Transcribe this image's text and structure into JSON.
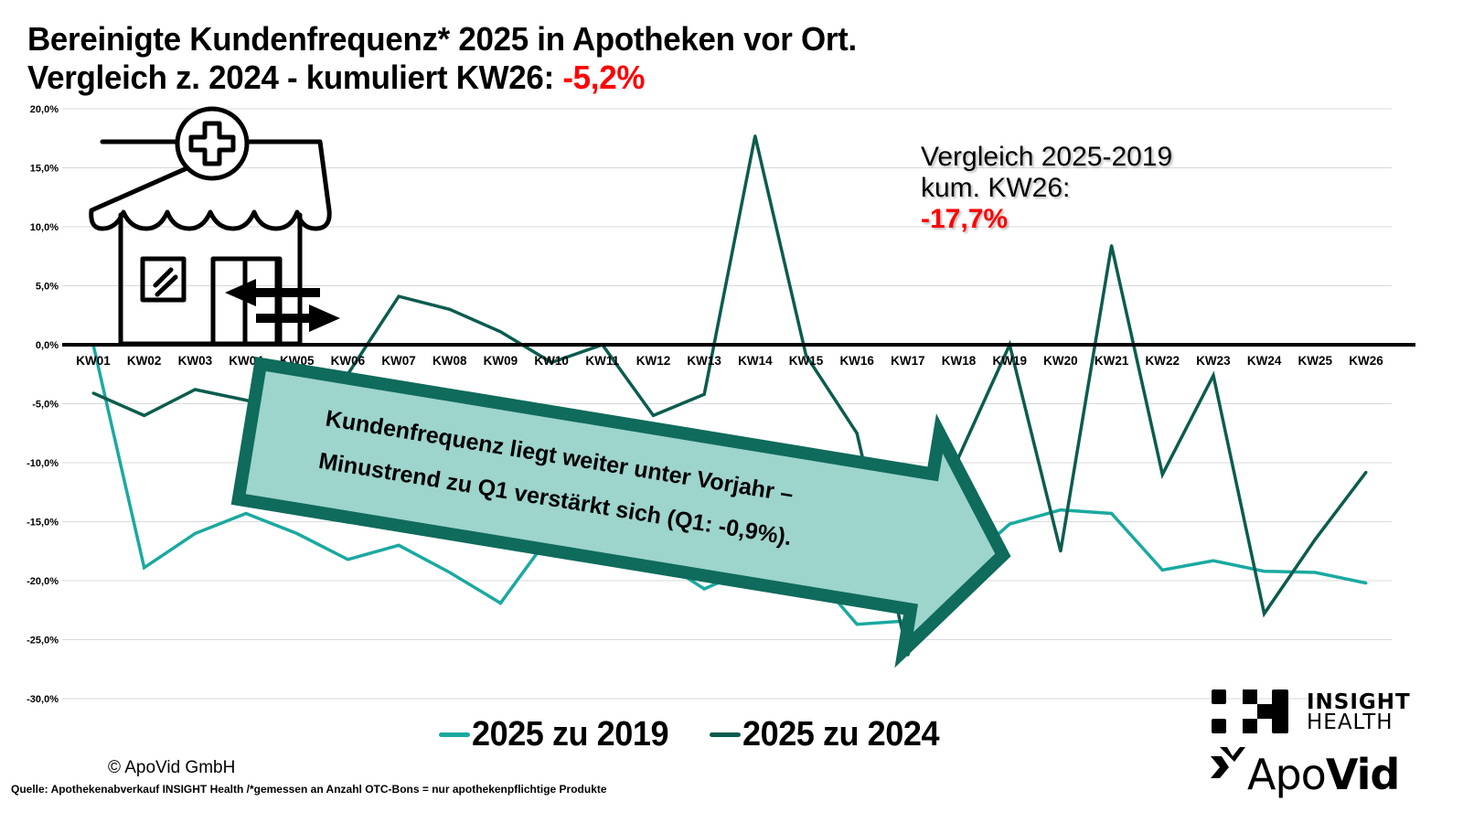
{
  "header": {
    "title_line1": "Bereinigte Kundenfrequenz* 2025 in Apotheken vor Ort.",
    "title_line2_prefix": "Vergleich z. 2024 - kumuliert KW26: ",
    "title_line2_value": "-5,2%"
  },
  "annotation": {
    "line1": "Vergleich 2025-2019",
    "line2": "kum. KW26:",
    "value": "-17,7%"
  },
  "callout": {
    "line1": "Kundenfrequenz liegt weiter unter Vorjahr –",
    "line2": "Minustrend zu Q1 verstärkt sich (Q1: -0,9%)."
  },
  "icons": {
    "pharmacy": "pharmacy-store-icon",
    "arrows": "in-out-arrows-icon"
  },
  "colors": {
    "series_2019": "#1aa9a0",
    "series_2024": "#0b5c4e",
    "callout_fill": "#9dd4cc",
    "callout_border": "#0f6b5c",
    "highlight_red": "#ff0000",
    "gridline": "#d9d9d9"
  },
  "footer": {
    "copyright": "© ApoVid GmbH",
    "source": "Quelle: Apothekenabverkauf INSIGHT Health /*gemessen an Anzahl OTC-Bons = nur apothekenpflichtige Produkte"
  },
  "logos": {
    "insight_line1": "INSIGHT",
    "insight_line2": "HEALTH",
    "apovid_regular": "Apo",
    "apovid_bold": "Vid"
  },
  "chart_data": {
    "type": "line",
    "title": "Bereinigte Kundenfrequenz* 2025 in Apotheken vor Ort. Vergleich z. 2024 - kumuliert KW26: -5,2%",
    "xlabel": "",
    "ylabel": "",
    "ylim": [
      -30,
      20
    ],
    "yticks": [
      20,
      15,
      10,
      5,
      0,
      -5,
      -10,
      -15,
      -20,
      -25,
      -30
    ],
    "ytick_labels": [
      "20,0%",
      "15,0%",
      "10,0%",
      "5,0%",
      "0,0%",
      "-5,0%",
      "-10,0%",
      "-15,0%",
      "-20,0%",
      "-25,0%",
      "-30,0%"
    ],
    "grid": true,
    "legend_position": "bottom-center",
    "categories": [
      "KW01",
      "KW02",
      "KW03",
      "KW04",
      "KW05",
      "KW06",
      "KW07",
      "KW08",
      "KW09",
      "KW10",
      "KW11",
      "KW12",
      "KW13",
      "KW14",
      "KW15",
      "KW16",
      "KW17",
      "KW18",
      "KW19",
      "KW20",
      "KW21",
      "KW22",
      "KW23",
      "KW24",
      "KW25",
      "KW26"
    ],
    "series": [
      {
        "name": "2025 zu 2019",
        "color": "#1aa9a0",
        "values": [
          0.0,
          -18.9,
          -16.0,
          -14.3,
          -16.0,
          -18.2,
          -17.0,
          -19.3,
          -21.9,
          -16.0,
          -15.3,
          -17.9,
          -20.7,
          -18.8,
          -18.7,
          -23.7,
          -23.4,
          -19.0,
          -15.2,
          -14.0,
          -14.3,
          -19.1,
          -18.3,
          -19.2,
          -19.3,
          -20.2
        ]
      },
      {
        "name": "2025 zu 2024",
        "color": "#0b5c4e",
        "values": [
          -4.1,
          -6.0,
          -3.8,
          -4.7,
          -6.0,
          -2.5,
          4.1,
          3.0,
          1.1,
          -1.5,
          0.0,
          -6.0,
          -4.2,
          17.7,
          -0.9,
          -7.5,
          -26.3,
          -9.5,
          0.0,
          -17.5,
          8.4,
          -11.0,
          -2.6,
          -22.8,
          -16.5,
          -10.8
        ]
      }
    ],
    "annotations": [
      "Vergleich 2025-2019 kum. KW26: -17,7%",
      "Kundenfrequenz liegt weiter unter Vorjahr – Minustrend zu Q1 verstärkt sich (Q1: -0,9%)."
    ]
  }
}
